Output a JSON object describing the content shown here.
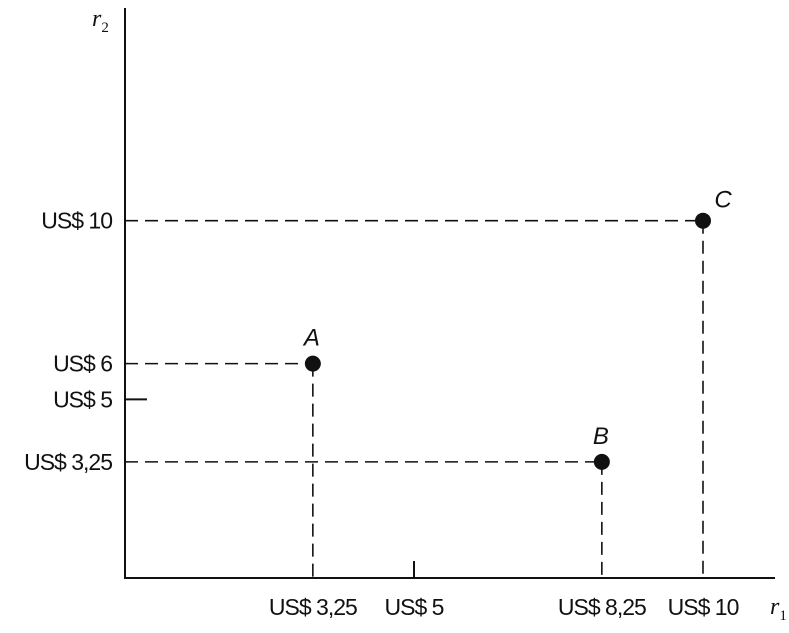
{
  "chart_data": {
    "type": "scatter",
    "title": "",
    "xlabel": "r",
    "xlabel_sub": "1",
    "ylabel": "r",
    "ylabel_sub": "2",
    "xlim": [
      0,
      14
    ],
    "ylim": [
      0,
      13.25
    ],
    "grid": false,
    "legend": "none",
    "x_ticks": [
      {
        "value": 3.25,
        "label": "US$ 3,25"
      },
      {
        "value": 5,
        "label": "US$ 5"
      },
      {
        "value": 8.25,
        "label": "US$ 8,25"
      },
      {
        "value": 10,
        "label": "US$ 10"
      }
    ],
    "y_ticks": [
      {
        "value": 10,
        "label": "US$ 10"
      },
      {
        "value": 6,
        "label": "US$ 6"
      },
      {
        "value": 5,
        "label": "US$ 5"
      },
      {
        "value": 3.25,
        "label": "US$ 3,25"
      }
    ],
    "points": [
      {
        "name": "A",
        "x": 3.25,
        "y": 6
      },
      {
        "name": "B",
        "x": 8.25,
        "y": 3.25
      },
      {
        "name": "C",
        "x": 10,
        "y": 10
      }
    ],
    "colors": {
      "ink": "#111111",
      "background": "#ffffff"
    }
  }
}
